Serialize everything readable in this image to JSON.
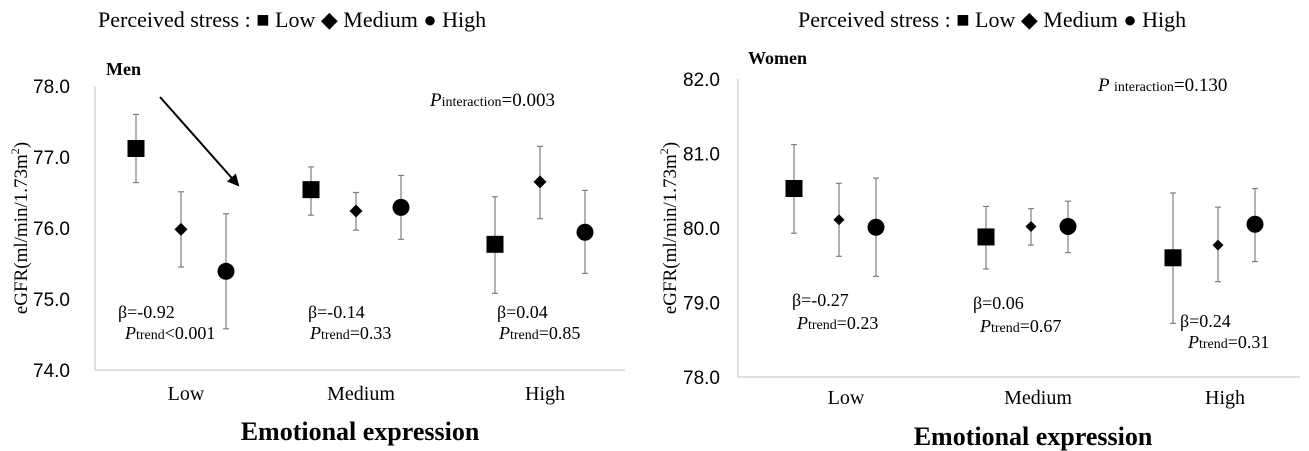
{
  "chart_data": [
    {
      "type": "scatter",
      "panel_label": "Men",
      "legend": {
        "prefix": "Perceived stress : ",
        "entries": [
          {
            "marker": "square",
            "label": "Low"
          },
          {
            "marker": "diamond",
            "label": "Medium"
          },
          {
            "marker": "circle",
            "label": "High"
          }
        ],
        "placement": "top"
      },
      "ylabel_text": "eGFR(ml/min/1.73m",
      "ylabel_sup": "2",
      "ylabel_close": ")",
      "xlabel": "Emotional expression",
      "ylim": [
        74.0,
        78.0
      ],
      "yticks": [
        "74.0",
        "75.0",
        "76.0",
        "77.0",
        "78.0"
      ],
      "categories": [
        "Low",
        "Medium",
        "High"
      ],
      "series": [
        {
          "name": "Low",
          "marker": "square",
          "values": [
            77.12,
            76.54,
            75.77
          ],
          "lower": [
            76.64,
            76.18,
            75.08
          ],
          "upper": [
            77.6,
            76.86,
            76.44
          ]
        },
        {
          "name": "Medium",
          "marker": "diamond",
          "values": [
            75.98,
            76.24,
            76.65
          ],
          "lower": [
            75.45,
            75.97,
            76.13
          ],
          "upper": [
            76.51,
            76.5,
            77.15
          ]
        },
        {
          "name": "High",
          "marker": "circle",
          "values": [
            75.39,
            76.29,
            75.94
          ],
          "lower": [
            74.58,
            75.84,
            75.36
          ],
          "upper": [
            76.2,
            76.74,
            76.53
          ]
        }
      ],
      "betas": [
        {
          "beta": "β=-0.92",
          "p_prefix": "P",
          "p_sub": "trend",
          "p_value": "<0.001"
        },
        {
          "beta": "β=-0.14",
          "p_prefix": "P",
          "p_sub": "trend",
          "p_value": "=0.33"
        },
        {
          "beta": "β=0.04",
          "p_prefix": "P",
          "p_sub": "trend",
          "p_value": "=0.85"
        }
      ],
      "interaction": {
        "prefix": "P",
        "sub": "interaction",
        "value": "=0.003"
      },
      "arrow": true,
      "grid": false
    },
    {
      "type": "scatter",
      "panel_label": "Women",
      "legend": {
        "prefix": "Perceived stress : ",
        "entries": [
          {
            "marker": "square",
            "label": "Low"
          },
          {
            "marker": "diamond",
            "label": "Medium"
          },
          {
            "marker": "circle",
            "label": "High"
          }
        ],
        "placement": "top"
      },
      "ylabel_text": "eGFR(ml/min/1.73m",
      "ylabel_sup": "2",
      "ylabel_close": ")",
      "xlabel": "Emotional expression",
      "ylim": [
        78.0,
        82.0
      ],
      "yticks": [
        "78.0",
        "79.0",
        "80.0",
        "81.0",
        "82.0"
      ],
      "categories": [
        "Low",
        "Medium",
        "High"
      ],
      "series": [
        {
          "name": "Low",
          "marker": "square",
          "values": [
            80.53,
            79.88,
            79.6
          ],
          "lower": [
            79.93,
            79.45,
            78.72
          ],
          "upper": [
            81.12,
            80.29,
            80.47
          ]
        },
        {
          "name": "Medium",
          "marker": "diamond",
          "values": [
            80.11,
            80.02,
            79.77
          ],
          "lower": [
            79.62,
            79.77,
            79.28
          ],
          "upper": [
            80.6,
            80.26,
            80.28
          ]
        },
        {
          "name": "High",
          "marker": "circle",
          "values": [
            80.01,
            80.02,
            80.05
          ],
          "lower": [
            79.35,
            79.67,
            79.55
          ],
          "upper": [
            80.67,
            80.36,
            80.53
          ]
        }
      ],
      "betas": [
        {
          "beta": "β=-0.27",
          "p_prefix": "P",
          "p_sub": "trend",
          "p_value": "=0.23"
        },
        {
          "beta": "β=0.06",
          "p_prefix": "P",
          "p_sub": "trend",
          "p_value": "=0.67"
        },
        {
          "beta": "β=0.24",
          "p_prefix": "P",
          "p_sub": "trend",
          "p_value": "=0.31"
        }
      ],
      "interaction": {
        "prefix": "P ",
        "sub": "interaction",
        "value": "=0.130"
      },
      "arrow": false,
      "grid": false
    }
  ]
}
